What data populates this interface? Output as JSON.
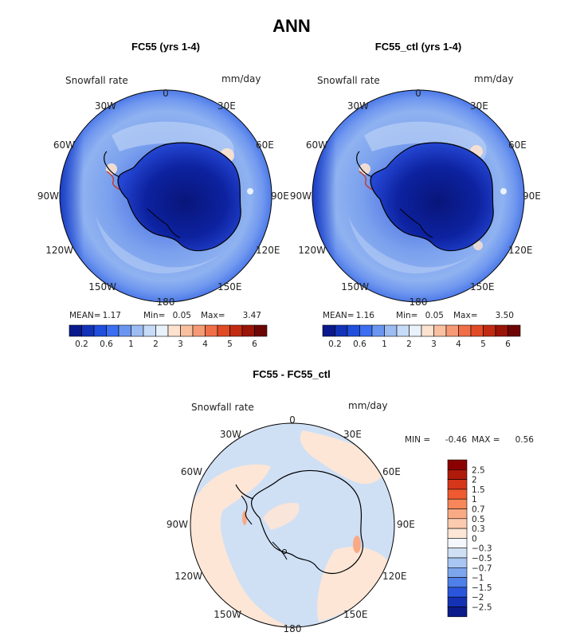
{
  "figure": {
    "title": "ANN"
  },
  "chart_data": [
    {
      "type": "heatmap",
      "projection": "south-polar-stereographic",
      "title": "FC55 (yrs 1-4)",
      "variable": "Snowfall rate",
      "units": "mm/day",
      "longitude_labels": [
        "0",
        "30E",
        "60E",
        "90E",
        "120E",
        "150E",
        "180",
        "150W",
        "120W",
        "90W",
        "60W",
        "30W"
      ],
      "stats": {
        "mean_label": "MEAN=",
        "mean": "1.17",
        "min_label": "Min=",
        "min": "0.05",
        "max_label": "Max=",
        "max": "3.47"
      },
      "colorbar": {
        "colors": [
          "#0a1a8c",
          "#1233b8",
          "#1f4fdc",
          "#3b6ef0",
          "#6b96f0",
          "#9dbcf2",
          "#c6dbf7",
          "#e9f1fb",
          "#fde2cf",
          "#f9c0a0",
          "#f59a75",
          "#f06e48",
          "#e04a25",
          "#c12b12",
          "#9a1408",
          "#6e0606"
        ],
        "tick_labels": [
          "0.2",
          "0.6",
          "1",
          "2",
          "3",
          "4",
          "5",
          "6"
        ]
      }
    },
    {
      "type": "heatmap",
      "projection": "south-polar-stereographic",
      "title": "FC55_ctl (yrs 1-4)",
      "variable": "Snowfall rate",
      "units": "mm/day",
      "longitude_labels": [
        "0",
        "30E",
        "60E",
        "90E",
        "120E",
        "150E",
        "180",
        "150W",
        "120W",
        "90W",
        "60W",
        "30W"
      ],
      "stats": {
        "mean_label": "MEAN=",
        "mean": "1.16",
        "min_label": "Min=",
        "min": "0.05",
        "max_label": "Max=",
        "max": "3.50"
      },
      "colorbar": {
        "colors": [
          "#0a1a8c",
          "#1233b8",
          "#1f4fdc",
          "#3b6ef0",
          "#6b96f0",
          "#9dbcf2",
          "#c6dbf7",
          "#e9f1fb",
          "#fde2cf",
          "#f9c0a0",
          "#f59a75",
          "#f06e48",
          "#e04a25",
          "#c12b12",
          "#9a1408",
          "#6e0606"
        ],
        "tick_labels": [
          "0.2",
          "0.6",
          "1",
          "2",
          "3",
          "4",
          "5",
          "6"
        ]
      }
    },
    {
      "type": "heatmap",
      "projection": "south-polar-stereographic",
      "title": "FC55 - FC55_ctl",
      "variable": "Snowfall rate",
      "units": "mm/day",
      "longitude_labels": [
        "0",
        "30E",
        "60E",
        "90E",
        "120E",
        "150E",
        "180",
        "150W",
        "120W",
        "90W",
        "60W",
        "30W"
      ],
      "stats": {
        "min_label": "MIN =",
        "min": "-0.46",
        "max_label": "MAX =",
        "max": "0.56"
      },
      "colorbar": {
        "orientation": "vertical",
        "colors": [
          "#8b0000",
          "#b01a0a",
          "#d6361a",
          "#ef5a30",
          "#f7865a",
          "#f9aa85",
          "#fccaaf",
          "#fde6d6",
          "#f4f7fb",
          "#cfe0f5",
          "#a8c6f1",
          "#7ea6ec",
          "#4f7fe8",
          "#2a56dc",
          "#1532b4",
          "#0c1b8a"
        ],
        "tick_labels": [
          "2.5",
          "2",
          "1.5",
          "1",
          "0.7",
          "0.5",
          "0.3",
          "0",
          "−0.3",
          "−0.5",
          "−0.7",
          "−1",
          "−1.5",
          "−2",
          "−2.5"
        ]
      }
    }
  ]
}
